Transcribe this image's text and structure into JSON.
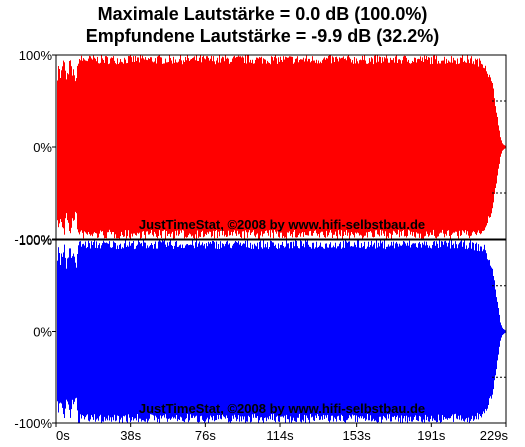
{
  "title_line_1": "Maximale Lautstärke = 0.0 dB (100.0%)",
  "title_line_2": "Empfundene Lautstärke = -9.9 dB (32.2%)",
  "watermark": "JustTimeStat, ©2008 by www.hifi-selbstbau.de",
  "colors": {
    "left_channel": "#ff0000",
    "right_channel": "#0000ff",
    "background": "#ffffff",
    "frame": "#000000"
  },
  "chart_data": {
    "type": "area",
    "duration_s": 229,
    "x_ticks": [
      "0s",
      "38s",
      "76s",
      "114s",
      "153s",
      "191s",
      "229s"
    ],
    "x_tick_values": [
      0,
      38,
      76,
      114,
      153,
      191,
      229
    ],
    "y_ticks": [
      "100%",
      "0%",
      "-100%"
    ],
    "y_tick_values": [
      100,
      0,
      -100
    ],
    "ylim": [
      -100,
      100
    ],
    "panels": [
      {
        "channel": "left",
        "color": "#ff0000",
        "peak_envelope_time_s": [
          0,
          1,
          2,
          3,
          4,
          5,
          6,
          7,
          8,
          9,
          10,
          11,
          12,
          15,
          30,
          60,
          90,
          120,
          150,
          180,
          210,
          218,
          222,
          224,
          225,
          226,
          227,
          228,
          229
        ],
        "peak_envelope_pct": [
          65,
          95,
          80,
          90,
          100,
          75,
          85,
          100,
          82,
          88,
          70,
          100,
          100,
          100,
          100,
          100,
          100,
          100,
          100,
          100,
          100,
          95,
          70,
          40,
          25,
          10,
          4,
          2,
          1
        ]
      },
      {
        "channel": "right",
        "color": "#0000ff",
        "peak_envelope_time_s": [
          0,
          1,
          2,
          3,
          4,
          5,
          6,
          7,
          8,
          9,
          10,
          11,
          12,
          15,
          30,
          60,
          90,
          120,
          150,
          180,
          210,
          218,
          222,
          224,
          225,
          226,
          227,
          228,
          229
        ],
        "peak_envelope_pct": [
          65,
          95,
          80,
          90,
          100,
          75,
          85,
          100,
          82,
          88,
          70,
          100,
          100,
          100,
          100,
          100,
          100,
          100,
          100,
          100,
          100,
          95,
          70,
          40,
          25,
          10,
          4,
          2,
          1
        ]
      }
    ]
  }
}
